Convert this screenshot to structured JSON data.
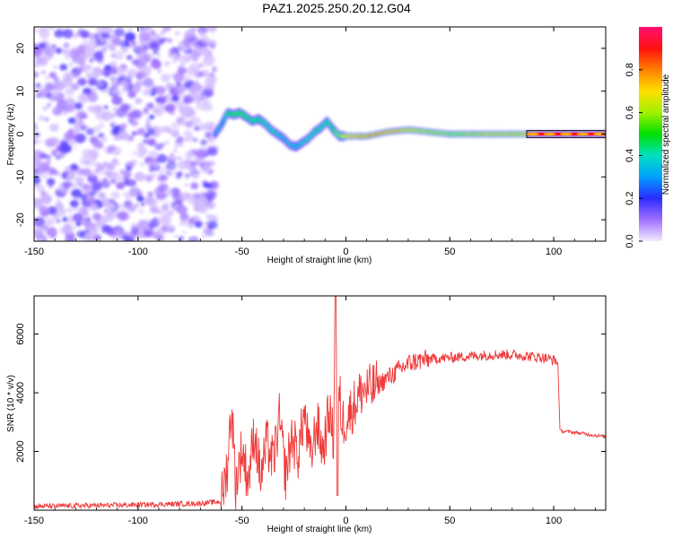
{
  "title": "PAZ1.2025.250.20.12.G04",
  "colors": {
    "signal": "#ef3a3a",
    "axis": "#000000"
  },
  "chart_data": [
    {
      "type": "heatmap",
      "title": "PAZ1.2025.250.20.12.G04",
      "xlabel": "Height of straight line (km)",
      "ylabel": "Frequency (Hz)",
      "xlim": [
        -150,
        125
      ],
      "ylim": [
        -25,
        25
      ],
      "xticks": [
        "-150",
        "-100",
        "-50",
        "0",
        "50",
        "100"
      ],
      "yticks": [
        "-20",
        "-10",
        "0",
        "10",
        "20"
      ],
      "colorbar": {
        "label": "Normalized spectral amplitude",
        "range": [
          0,
          1
        ],
        "ticks": [
          "0.0",
          "0.2",
          "0.4",
          "0.6",
          "0.8"
        ]
      },
      "noise_region_x": [
        -150,
        -63
      ],
      "ridge": {
        "x": [
          -63,
          -60,
          -57,
          -54,
          -51,
          -48,
          -45,
          -42,
          -39,
          -36,
          -33,
          -30,
          -27,
          -24,
          -21,
          -18,
          -15,
          -12,
          -9,
          -6,
          -3,
          0,
          5,
          10,
          15,
          20,
          30,
          40,
          50,
          60,
          70,
          80,
          87,
          100,
          110,
          125
        ],
        "y": [
          0,
          2,
          5,
          4.5,
          5,
          4,
          3,
          3.5,
          2.5,
          1,
          0,
          -1,
          -2.5,
          -3,
          -2,
          -1,
          0.5,
          1.5,
          3,
          1,
          -0.5,
          -0.5,
          -0.5,
          -0.5,
          0,
          0.5,
          1,
          0.5,
          0,
          0,
          0,
          0,
          0,
          0,
          0,
          0
        ],
        "amplitude": [
          0.25,
          0.3,
          0.45,
          0.5,
          0.5,
          0.45,
          0.4,
          0.42,
          0.4,
          0.38,
          0.35,
          0.32,
          0.3,
          0.32,
          0.35,
          0.35,
          0.4,
          0.4,
          0.42,
          0.5,
          0.6,
          0.75,
          0.8,
          0.8,
          0.85,
          0.8,
          0.7,
          0.65,
          0.6,
          0.65,
          0.7,
          0.7,
          0.75,
          0.9,
          0.9,
          0.9
        ]
      },
      "flat_band_x": [
        87,
        125
      ]
    },
    {
      "type": "line",
      "xlabel": "Height of straight line (km)",
      "ylabel": "SNR (10 * v/v)",
      "xlim": [
        -150,
        125
      ],
      "ylim": [
        0,
        7300
      ],
      "xticks": [
        "-150",
        "-100",
        "-50",
        "0",
        "50",
        "100"
      ],
      "yticks": [
        "2000",
        "4000",
        "6000"
      ],
      "series": [
        {
          "x": [
            -150,
            -130,
            -110,
            -90,
            -70,
            -60,
            -57,
            -55,
            -53,
            -50,
            -47,
            -44,
            -41,
            -38,
            -35,
            -32,
            -29,
            -26,
            -23,
            -20,
            -17,
            -14,
            -11,
            -8,
            -6,
            -5,
            -4,
            -3,
            -2,
            0,
            4,
            8,
            12,
            16,
            20,
            24,
            28,
            32,
            36,
            40,
            50,
            60,
            70,
            80,
            87,
            95,
            101,
            102,
            103,
            110,
            120,
            125
          ],
          "values": [
            130,
            150,
            170,
            200,
            230,
            300,
            1500,
            3600,
            900,
            2100,
            1000,
            2700,
            1100,
            2300,
            1600,
            3100,
            1200,
            2500,
            1900,
            3300,
            1700,
            3000,
            2000,
            3400,
            2400,
            7300,
            2500,
            4000,
            3000,
            3100,
            3600,
            4100,
            4100,
            4300,
            4500,
            4700,
            4900,
            5050,
            5100,
            5150,
            5200,
            5250,
            5300,
            5300,
            5250,
            5200,
            5100,
            5000,
            2700,
            2650,
            2550,
            2500
          ]
        }
      ]
    }
  ]
}
